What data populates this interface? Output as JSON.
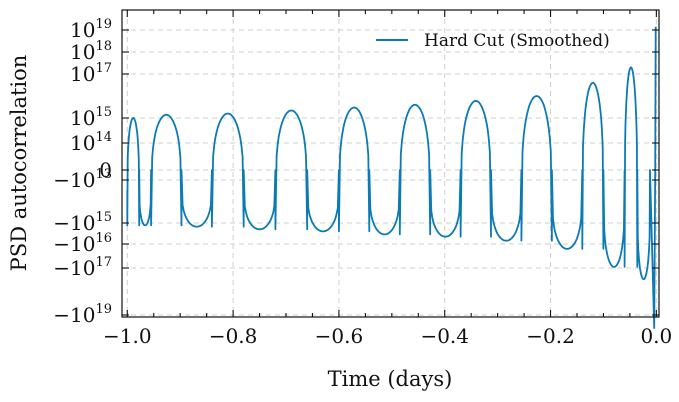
{
  "chart_data": {
    "type": "line",
    "title": "",
    "xlabel": "Time (days)",
    "ylabel": "PSD autocorrelation",
    "xlim": [
      -1.01,
      0.005
    ],
    "yscale": "symlog",
    "grid": true,
    "legend_position": "top-right",
    "x_ticks": [
      "−1.0",
      "−0.8",
      "−0.6",
      "−0.4",
      "−0.2",
      "0.0"
    ],
    "x_tick_values": [
      -1.0,
      -0.8,
      -0.6,
      -0.4,
      -0.2,
      0.0
    ],
    "y_ticks": [
      {
        "value": 1e+19,
        "mantissa": "10",
        "exp": "19"
      },
      {
        "value": 1e+18,
        "mantissa": "10",
        "exp": "18"
      },
      {
        "value": 1e+17,
        "mantissa": "10",
        "exp": "17"
      },
      {
        "value": 1000000000000000.0,
        "mantissa": "10",
        "exp": "15"
      },
      {
        "value": 100000000000000.0,
        "mantissa": "10",
        "exp": "14"
      },
      {
        "value": 0,
        "mantissa": "0",
        "exp": ""
      },
      {
        "value": -10000000000000.0,
        "mantissa": "−10",
        "exp": "13"
      },
      {
        "value": -1000000000000000.0,
        "mantissa": "−10",
        "exp": "15"
      },
      {
        "value": -1e+16,
        "mantissa": "−10",
        "exp": "16"
      },
      {
        "value": -1e+17,
        "mantissa": "−10",
        "exp": "17"
      },
      {
        "value": -1e+19,
        "mantissa": "−10",
        "exp": "19"
      }
    ],
    "series": [
      {
        "name": "Hard Cut (Smoothed)",
        "color": "#0C7BB4",
        "cycles": [
          {
            "x_start": -1.0,
            "x_end": -0.955,
            "peak": 1000000000000000.0,
            "trough": -1300000000000000.0
          },
          {
            "x_start": -0.955,
            "x_end": -0.84,
            "peak": 1400000000000000.0,
            "trough": -1500000000000000.0
          },
          {
            "x_start": -0.84,
            "x_end": -0.72,
            "peak": 1600000000000000.0,
            "trough": -2000000000000000.0
          },
          {
            "x_start": -0.72,
            "x_end": -0.6,
            "peak": 2200000000000000.0,
            "trough": -2500000000000000.0
          },
          {
            "x_start": -0.6,
            "x_end": -0.485,
            "peak": 3000000000000000.0,
            "trough": -3500000000000000.0
          },
          {
            "x_start": -0.485,
            "x_end": -0.37,
            "peak": 4000000000000000.0,
            "trough": -4500000000000000.0
          },
          {
            "x_start": -0.37,
            "x_end": -0.255,
            "peak": 6000000000000000.0,
            "trough": -7000000000000000.0
          },
          {
            "x_start": -0.255,
            "x_end": -0.14,
            "peak": 1e+16,
            "trough": -1.6e+16
          },
          {
            "x_start": -0.14,
            "x_end": -0.06,
            "peak": 4e+16,
            "trough": -9e+16
          },
          {
            "x_start": -0.06,
            "x_end": -0.012,
            "peak": 2e+17,
            "trough": -3e+17
          }
        ],
        "end_spike": {
          "x": -0.004,
          "trough": -5e+19,
          "final": 1.5e+19
        },
        "start_blip": {
          "x": -1.0,
          "value": -30000000000000.0
        }
      }
    ]
  }
}
